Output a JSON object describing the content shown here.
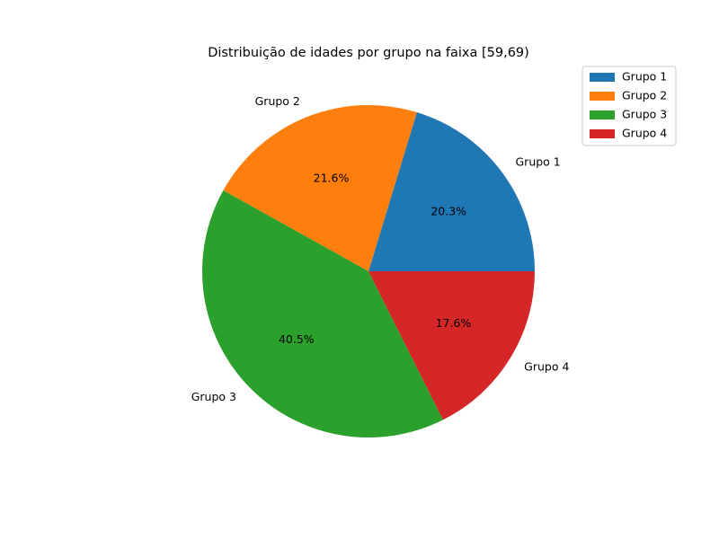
{
  "chart_data": {
    "type": "pie",
    "title": "Distribuição de idades por grupo na faixa [59,69)",
    "labels": [
      "Grupo 1",
      "Grupo 2",
      "Grupo 3",
      "Grupo 4"
    ],
    "values": [
      20.3,
      21.6,
      40.5,
      17.6
    ],
    "value_labels": [
      "20.3%",
      "21.6%",
      "40.5%",
      "17.6%"
    ],
    "colors": [
      "#1f77b4",
      "#ff7f0e",
      "#2ca02c",
      "#d62728"
    ],
    "start_angle_deg": 0,
    "direction": "counterclockwise",
    "legend": {
      "position": "top-right",
      "entries": [
        "Grupo 1",
        "Grupo 2",
        "Grupo 3",
        "Grupo 4"
      ]
    }
  }
}
